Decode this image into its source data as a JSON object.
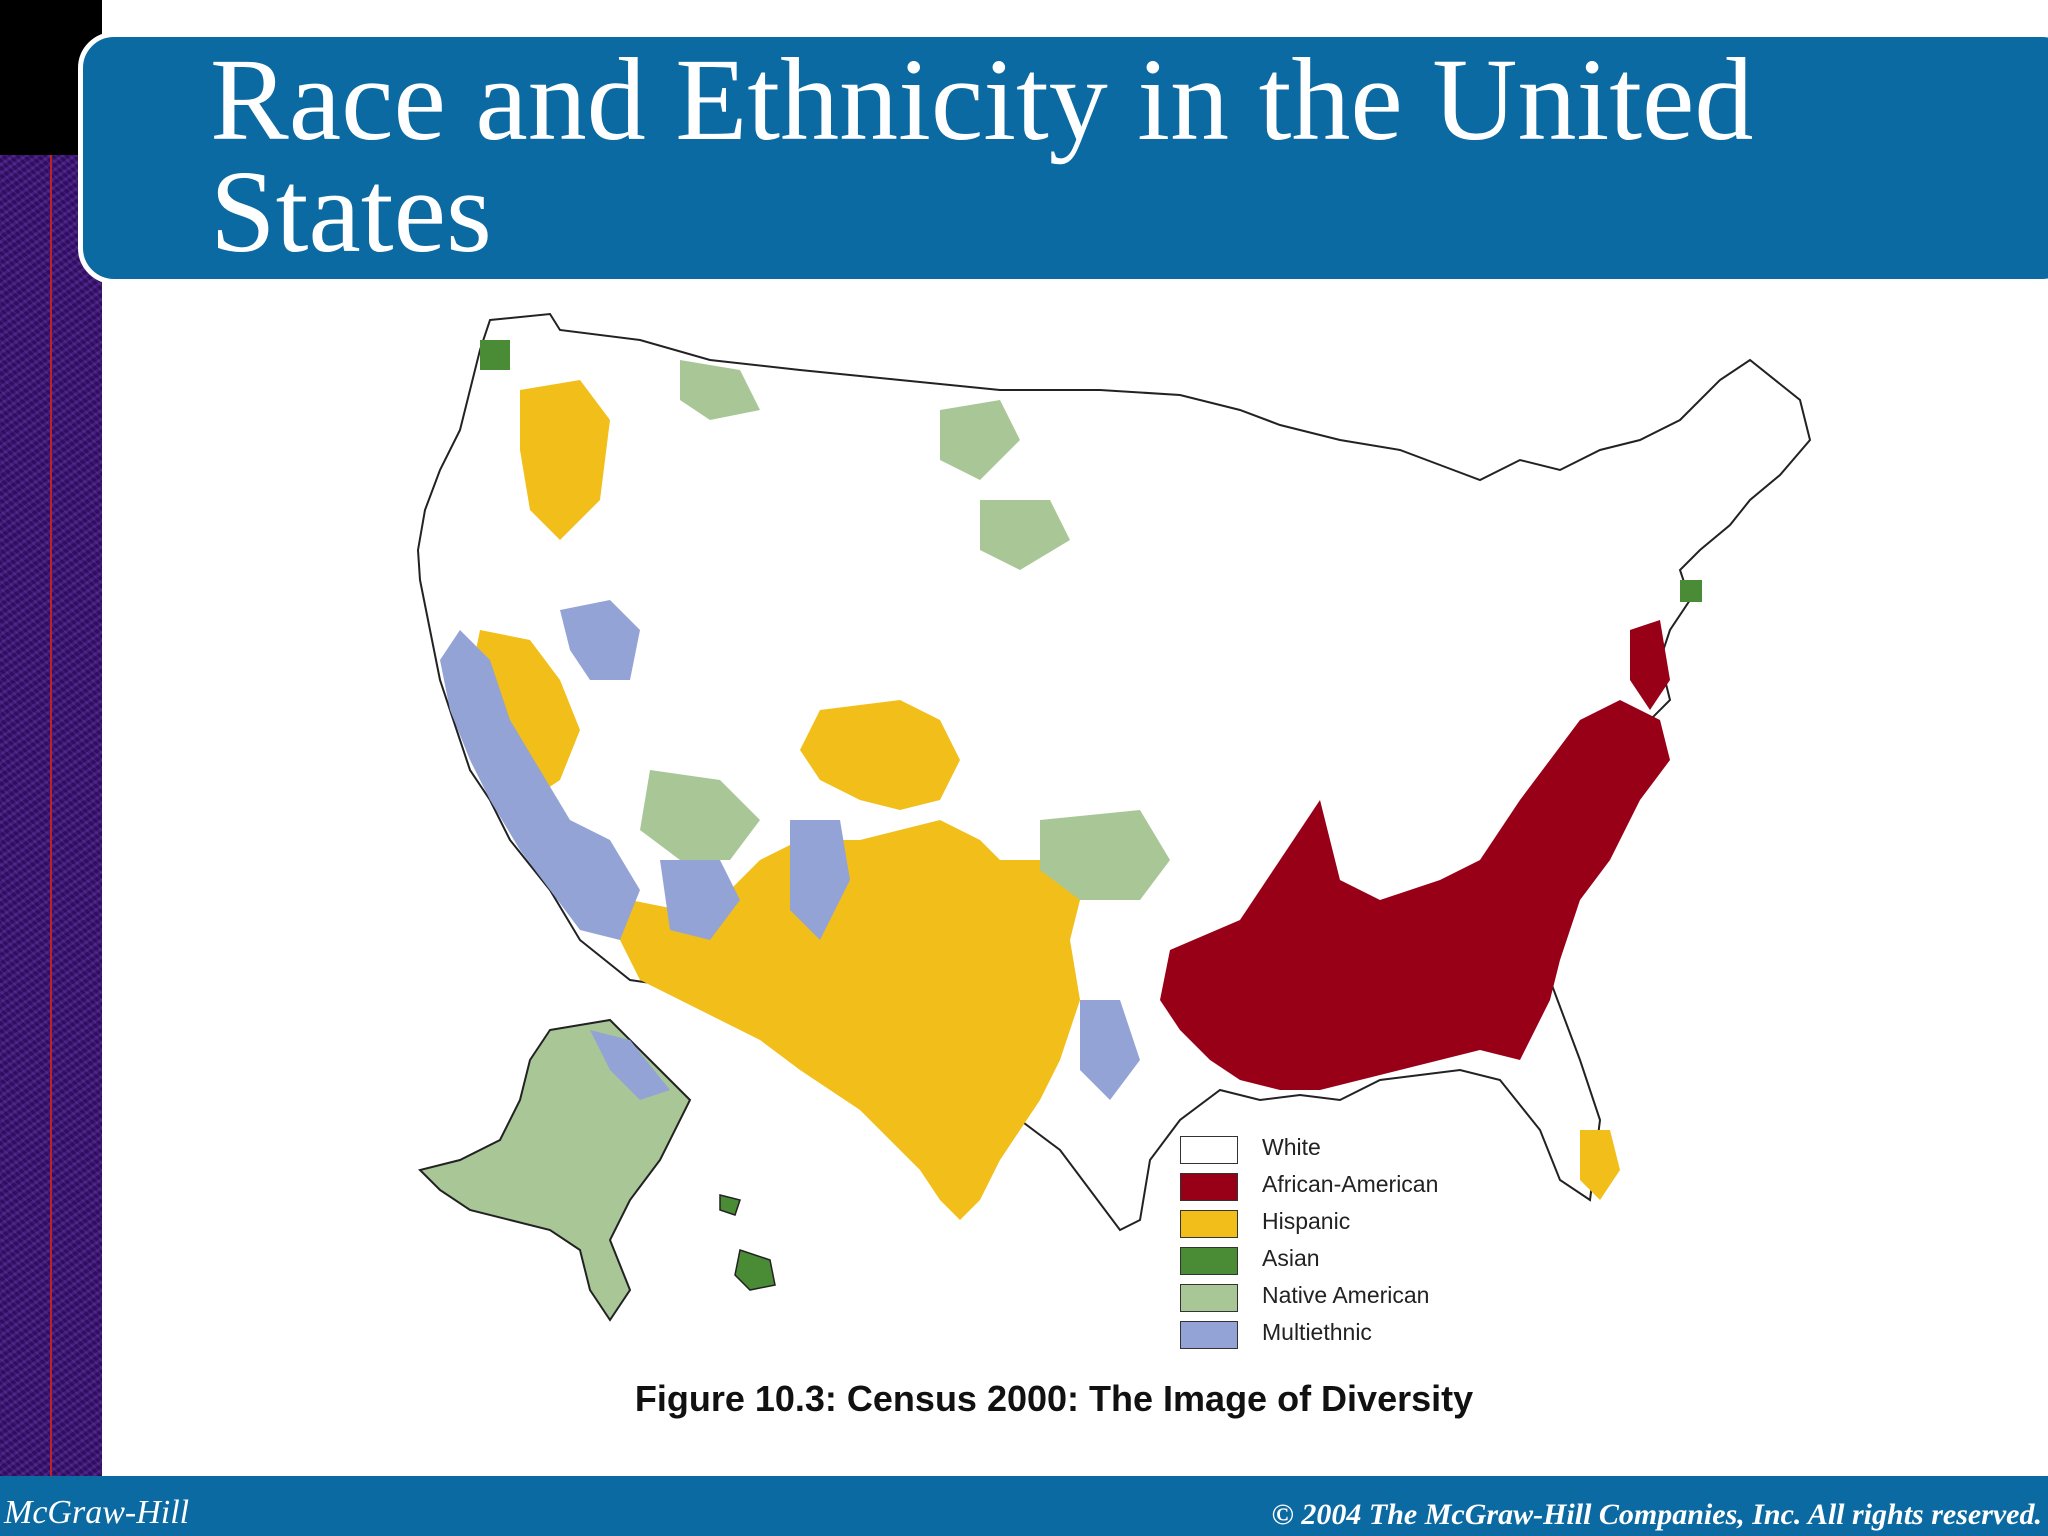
{
  "slide": {
    "title": "Race and Ethnicity in the United States",
    "caption": "Figure 10.3: Census 2000: The Image of Diversity"
  },
  "legend": {
    "items": [
      {
        "label": "White",
        "color": "#ffffff"
      },
      {
        "label": "African-American",
        "color": "#980018"
      },
      {
        "label": "Hispanic",
        "color": "#f2be1a"
      },
      {
        "label": "Asian",
        "color": "#4a8c35"
      },
      {
        "label": "Native American",
        "color": "#a9c796"
      },
      {
        "label": "Multiethnic",
        "color": "#93a3d6"
      }
    ]
  },
  "footer": {
    "publisher": "McGraw-Hill",
    "copyright": "© 2004 The McGraw-Hill Companies, Inc. All rights reserved."
  },
  "colors": {
    "title_bar": "#0b6aa2",
    "side_band": "#3a1270"
  }
}
